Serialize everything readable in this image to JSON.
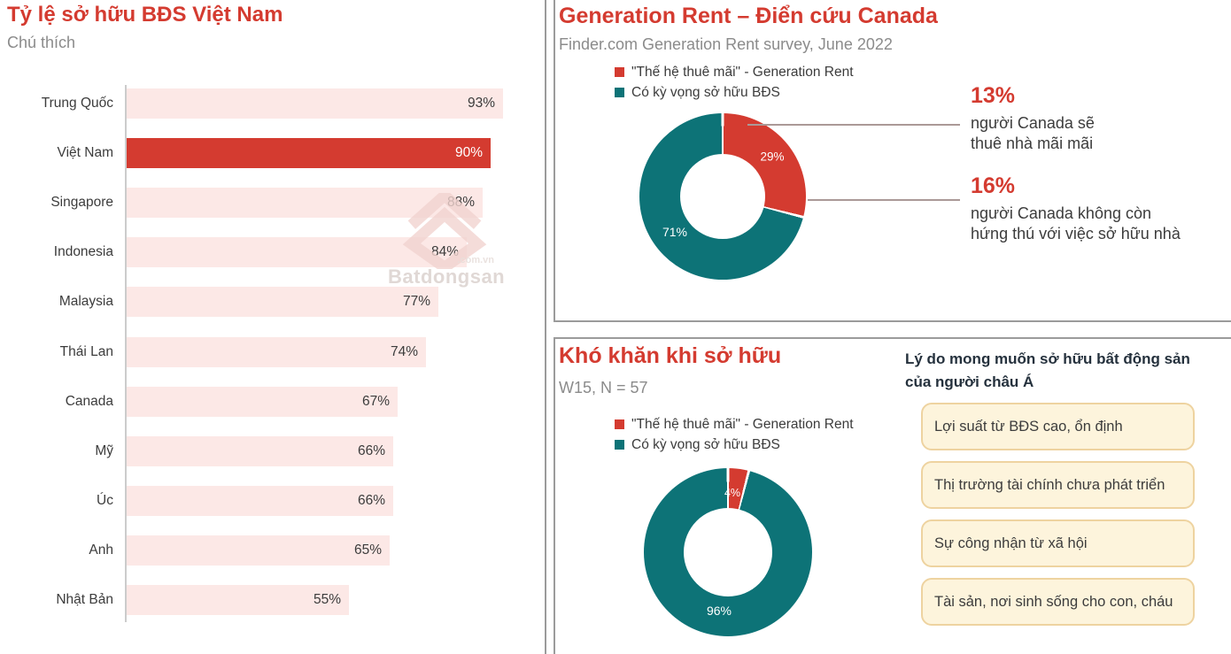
{
  "colors": {
    "accent_red": "#d43b30",
    "teal": "#0d7377",
    "light_pink": "#fce8e6",
    "cream_bg": "#fdf4dc",
    "cream_border": "#eed3a0"
  },
  "panels": {
    "left": {
      "title": "Tỷ lệ sở hữu BĐS Việt Nam",
      "subtitle": "Chú thích"
    },
    "top_right": {
      "title": "Generation Rent – Điển cứu Canada",
      "subtitle": "Finder.com Generation Rent survey, June 2022",
      "legend": [
        {
          "label": "\"Thế hệ thuê mãi\" - Generation Rent",
          "color": "#d43b30"
        },
        {
          "label": "Có kỳ vọng sở hữu BĐS",
          "color": "#0d7377"
        }
      ],
      "callouts": [
        {
          "value": "13%",
          "lines": [
            "người Canada sẽ",
            "thuê nhà mãi mãi"
          ]
        },
        {
          "value": "16%",
          "lines": [
            "người Canada không còn",
            "hứng thú với việc sở hữu nhà"
          ]
        }
      ]
    },
    "bottom_right": {
      "title": "Khó khăn khi sở hữu",
      "subtitle": "W15, N = 57",
      "legend": [
        {
          "label": "\"Thế hệ thuê mãi\" - Generation Rent",
          "color": "#d43b30"
        },
        {
          "label": "Có kỳ vọng sở hữu BĐS",
          "color": "#0d7377"
        }
      ],
      "reasons": {
        "heading": "Lý do mong muốn sở hữu bất động sản của người châu Á",
        "items": [
          "Lợi suất từ BĐS cao, ổn định",
          "Thị trường tài chính chưa phát triển",
          "Sự công nhận từ xã hội",
          "Tài sản, nơi sinh sống cho con, cháu"
        ]
      }
    }
  },
  "watermark": {
    "brand": "Batdongsan",
    "domain": ".com.vn"
  },
  "chart_data": [
    {
      "type": "bar",
      "orientation": "horizontal",
      "title": "Tỷ lệ sở hữu BĐS Việt Nam",
      "categories": [
        "Trung Quốc",
        "Việt Nam",
        "Singapore",
        "Indonesia",
        "Malaysia",
        "Thái Lan",
        "Canada",
        "Mỹ",
        "Úc",
        "Anh",
        "Nhật Bản"
      ],
      "values": [
        93,
        90,
        88,
        84,
        77,
        74,
        67,
        66,
        66,
        65,
        55
      ],
      "unit": "%",
      "xlim": [
        0,
        100
      ],
      "grid": false,
      "highlight_category": "Việt Nam",
      "highlight_color": "#d43b30",
      "bar_color": "#fce8e6"
    },
    {
      "type": "pie",
      "subtype": "donut",
      "title": "Generation Rent – Điển cứu Canada",
      "labels": [
        "\"Thế hệ thuê mãi\" - Generation Rent",
        "Có kỳ vọng sở hữu BĐS"
      ],
      "values": [
        29,
        71
      ],
      "colors": [
        "#d43b30",
        "#0d7377"
      ],
      "unit": "%",
      "legend_position": "top"
    },
    {
      "type": "pie",
      "subtype": "donut",
      "title": "Khó khăn khi sở hữu",
      "labels": [
        "\"Thế hệ thuê mãi\" - Generation Rent",
        "Có kỳ vọng sở hữu BĐS"
      ],
      "values": [
        4,
        96
      ],
      "colors": [
        "#d43b30",
        "#0d7377"
      ],
      "unit": "%",
      "legend_position": "top"
    }
  ]
}
